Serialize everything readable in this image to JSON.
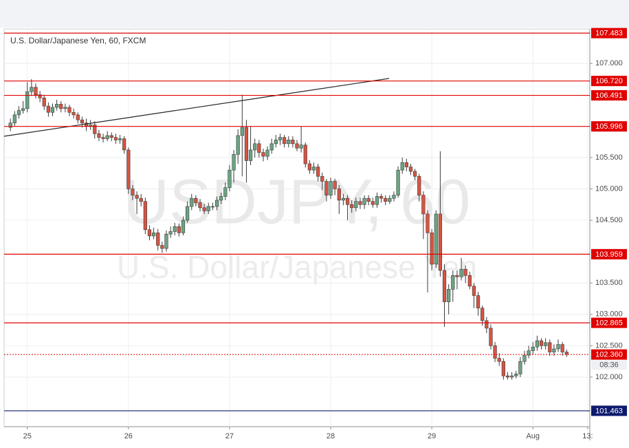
{
  "chart_data": {
    "type": "candlestick",
    "title": "U.S. Dollar/Japanese Yen, 60, FXCM",
    "watermark": "USDJPY, 60",
    "watermark_subtitle": "U.S. Dollar/Japanese Yen",
    "categories": [
      null,
      null,
      null,
      null,
      null,
      "25",
      null,
      null,
      null,
      null,
      null,
      null,
      null,
      null,
      null,
      null,
      null,
      null,
      null,
      null,
      null,
      null,
      null,
      null,
      null,
      null,
      null,
      null,
      null,
      "26",
      null,
      null,
      null,
      null,
      null,
      null,
      null,
      null,
      null,
      null,
      null,
      null,
      null,
      null,
      null,
      null,
      null,
      null,
      null,
      null,
      null,
      null,
      null,
      "27",
      null,
      null,
      null,
      null,
      null,
      null,
      null,
      null,
      null,
      null,
      null,
      null,
      null,
      null,
      null,
      null,
      null,
      null,
      null,
      null,
      null,
      null,
      null,
      "28",
      null,
      null,
      null,
      null,
      null,
      null,
      null,
      null,
      null,
      null,
      null,
      null,
      null,
      null,
      null,
      null,
      null,
      null,
      null,
      null,
      null,
      null,
      null,
      "29",
      null,
      null,
      null,
      null,
      null,
      null,
      null,
      null,
      null,
      null,
      null,
      null,
      null,
      null,
      null,
      null,
      null,
      null,
      null,
      null,
      null,
      null,
      null,
      "Aug",
      null,
      null,
      null,
      null,
      null,
      null,
      null,
      null,
      null,
      null,
      null,
      null,
      "13:"
    ],
    "open": [
      null,
      105.98,
      106.05,
      106.18,
      106.25,
      106.28,
      106.55,
      106.62,
      106.5,
      106.45,
      106.32,
      106.22,
      106.3,
      106.35,
      106.28,
      106.3,
      106.22,
      106.18,
      106.1,
      106.05,
      106.0,
      106.02,
      105.88,
      105.82,
      105.8,
      105.85,
      105.82,
      105.78,
      105.8,
      105.62,
      105.0,
      104.9,
      104.85,
      104.8,
      104.35,
      104.25,
      104.3,
      104.1,
      104.05,
      104.28,
      104.32,
      104.4,
      104.3,
      104.5,
      104.72,
      104.85,
      104.78,
      104.7,
      104.65,
      104.72,
      104.72,
      104.82,
      104.88,
      105.02,
      105.3,
      105.55,
      105.85,
      105.98,
      105.45,
      105.62,
      105.72,
      105.58,
      105.52,
      105.62,
      105.72,
      105.78,
      105.82,
      105.72,
      105.78,
      105.72,
      105.65,
      105.7,
      105.4,
      105.3,
      105.35,
      105.2,
      105.12,
      104.9,
      105.12,
      105.0,
      104.82,
      104.85,
      104.75,
      104.7,
      104.8,
      104.75,
      104.85,
      104.8,
      104.75,
      104.88,
      104.85,
      104.8,
      104.85,
      104.9,
      105.3,
      105.42,
      105.35,
      105.28,
      105.2,
      104.9,
      104.6,
      104.3,
      103.8,
      104.6,
      103.7,
      103.2,
      103.4,
      103.62,
      103.6,
      103.72,
      103.62,
      103.45,
      103.3,
      103.1,
      102.9,
      102.78,
      102.5,
      102.3,
      102.25,
      102.02,
      102.0,
      102.02,
      102.05,
      102.25,
      102.35,
      102.42,
      102.48,
      102.58,
      102.5,
      102.55,
      102.4,
      102.45,
      102.52,
      102.4,
      null,
      null,
      null,
      null,
      null
    ],
    "high": [
      null,
      106.12,
      106.24,
      106.32,
      106.4,
      106.7,
      106.75,
      106.68,
      106.56,
      106.5,
      106.38,
      106.36,
      106.42,
      106.4,
      106.36,
      106.34,
      106.28,
      106.22,
      106.15,
      106.12,
      106.1,
      106.08,
      105.94,
      105.88,
      105.92,
      105.9,
      105.88,
      105.86,
      105.84,
      105.66,
      105.06,
      104.96,
      104.92,
      104.86,
      104.42,
      104.38,
      104.36,
      104.16,
      104.34,
      104.4,
      104.46,
      104.45,
      104.56,
      104.8,
      104.92,
      104.9,
      104.84,
      104.76,
      104.78,
      104.78,
      104.88,
      104.94,
      105.1,
      105.38,
      105.62,
      105.95,
      106.5,
      106.1,
      106.0,
      105.8,
      105.78,
      105.64,
      105.68,
      105.8,
      105.86,
      105.88,
      105.86,
      105.84,
      105.84,
      105.78,
      106.0,
      105.74,
      105.46,
      105.42,
      105.4,
      105.26,
      105.16,
      105.18,
      105.16,
      105.06,
      104.92,
      104.9,
      104.82,
      104.86,
      104.86,
      104.9,
      104.9,
      104.86,
      104.94,
      104.92,
      104.9,
      104.9,
      104.96,
      105.36,
      105.5,
      105.48,
      105.4,
      105.32,
      105.24,
      104.96,
      104.66,
      104.36,
      104.66,
      105.6,
      103.8,
      103.48,
      103.7,
      103.7,
      103.9,
      103.78,
      103.68,
      103.5,
      103.36,
      103.14,
      102.96,
      102.84,
      102.56,
      102.38,
      102.3,
      102.08,
      102.08,
      102.1,
      102.32,
      102.42,
      102.5,
      102.56,
      102.66,
      102.62,
      102.62,
      102.6,
      102.52,
      102.6,
      102.56,
      102.44,
      null,
      null,
      null,
      null,
      null
    ],
    "low": [
      null,
      105.92,
      106.0,
      106.12,
      106.2,
      106.22,
      106.48,
      106.44,
      106.38,
      106.26,
      106.15,
      106.16,
      106.25,
      106.22,
      106.22,
      106.16,
      106.12,
      106.04,
      105.98,
      105.92,
      105.94,
      105.8,
      105.76,
      105.74,
      105.76,
      105.76,
      105.72,
      105.72,
      105.56,
      104.92,
      104.82,
      104.6,
      104.72,
      104.28,
      104.18,
      104.2,
      104.02,
      103.98,
      104.0,
      104.22,
      104.26,
      104.24,
      104.26,
      104.46,
      104.66,
      104.72,
      104.64,
      104.6,
      104.6,
      104.66,
      104.66,
      104.76,
      104.82,
      104.96,
      105.1,
      105.4,
      105.2,
      105.1,
      105.38,
      105.5,
      105.5,
      105.44,
      105.46,
      105.56,
      105.66,
      105.7,
      105.66,
      105.66,
      105.66,
      105.6,
      105.58,
      105.34,
      105.24,
      105.24,
      105.12,
      104.98,
      104.8,
      104.84,
      104.9,
      104.6,
      104.74,
      104.5,
      104.62,
      104.64,
      104.68,
      104.68,
      104.74,
      104.7,
      104.7,
      104.78,
      104.74,
      104.76,
      104.8,
      104.86,
      105.24,
      105.28,
      105.22,
      105.14,
      104.8,
      104.2,
      103.35,
      103.7,
      103.74,
      103.6,
      102.8,
      103.0,
      103.2,
      103.4,
      103.54,
      103.5,
      103.4,
      103.1,
      102.98,
      102.82,
      102.7,
      102.44,
      102.24,
      102.18,
      101.96,
      101.96,
      101.96,
      101.98,
      102.0,
      102.2,
      102.3,
      102.36,
      102.42,
      102.44,
      102.44,
      102.34,
      102.34,
      102.4,
      102.34,
      102.32,
      null,
      null,
      null,
      null,
      null
    ],
    "close": [
      null,
      106.05,
      106.18,
      106.25,
      106.28,
      106.55,
      106.62,
      106.5,
      106.45,
      106.32,
      106.22,
      106.3,
      106.35,
      106.28,
      106.3,
      106.22,
      106.18,
      106.1,
      106.05,
      106.0,
      106.02,
      105.88,
      105.82,
      105.8,
      105.85,
      105.82,
      105.78,
      105.8,
      105.62,
      105.0,
      104.9,
      104.85,
      104.8,
      104.35,
      104.25,
      104.3,
      104.1,
      104.05,
      104.28,
      104.32,
      104.4,
      104.3,
      104.5,
      104.72,
      104.85,
      104.78,
      104.7,
      104.65,
      104.72,
      104.72,
      104.82,
      104.88,
      105.02,
      105.3,
      105.55,
      105.85,
      105.98,
      105.45,
      105.62,
      105.72,
      105.58,
      105.52,
      105.62,
      105.72,
      105.78,
      105.82,
      105.72,
      105.78,
      105.72,
      105.65,
      105.7,
      105.4,
      105.3,
      105.35,
      105.2,
      105.12,
      104.9,
      105.12,
      105.0,
      104.82,
      104.85,
      104.75,
      104.7,
      104.8,
      104.75,
      104.85,
      104.8,
      104.75,
      104.88,
      104.85,
      104.8,
      104.85,
      104.9,
      105.3,
      105.42,
      105.35,
      105.28,
      105.2,
      104.9,
      104.6,
      104.3,
      103.8,
      104.6,
      103.7,
      103.2,
      103.4,
      103.62,
      103.6,
      103.72,
      103.62,
      103.45,
      103.3,
      103.1,
      102.9,
      102.78,
      102.5,
      102.3,
      102.25,
      102.02,
      102.0,
      102.02,
      102.05,
      102.25,
      102.35,
      102.42,
      102.48,
      102.58,
      102.5,
      102.55,
      102.4,
      102.45,
      102.52,
      102.4,
      102.36,
      null,
      null,
      null,
      null,
      null
    ],
    "up_color": "#6ba583",
    "down_color": "#d75442",
    "ylim": [
      101.21,
      107.55
    ],
    "yticks": [
      {
        "value": 102,
        "label": "102.000"
      },
      {
        "value": 102.5,
        "label": "102.500"
      },
      {
        "value": 103,
        "label": "103.000"
      },
      {
        "value": 103.5,
        "label": "103.500"
      },
      {
        "value": 104.5,
        "label": "104.500"
      },
      {
        "value": 105,
        "label": "105.000"
      },
      {
        "value": 105.5,
        "label": "105.500"
      },
      {
        "value": 107,
        "label": "107.000"
      }
    ],
    "grid": true,
    "levels": [
      {
        "value": 107.483,
        "color": "#e00000"
      },
      {
        "value": 106.72,
        "label": "106.720",
        "color": "#e00000"
      },
      {
        "value": 106.491,
        "color": "#e00000"
      },
      {
        "value": 105.996,
        "color": "#e00000"
      },
      {
        "value": 103.959,
        "color": "#e00000"
      },
      {
        "value": 102.865,
        "color": "#e00000"
      },
      {
        "value": 101.463,
        "color": "#0d1a6e"
      }
    ],
    "last": {
      "value": 102.36,
      "label": "102.360",
      "countdown": "08:36",
      "color": "#e00000"
    }
  }
}
